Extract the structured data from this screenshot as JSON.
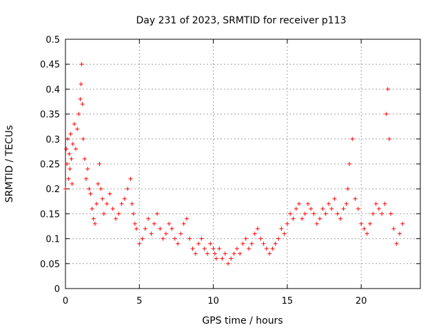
{
  "chart_data": {
    "type": "scatter",
    "title": "Day 231 of 2023, SRMTID for receiver p113",
    "xlabel": "GPS time / hours",
    "ylabel": "SRMTID / TECUs",
    "xlim": [
      0,
      24
    ],
    "ylim": [
      0,
      0.5
    ],
    "xticks": [
      0,
      5,
      10,
      15,
      20
    ],
    "xtick_labels": [
      "0",
      "5",
      "10",
      "15",
      "20"
    ],
    "yticks": [
      0,
      0.05,
      0.1,
      0.15,
      0.2,
      0.25,
      0.3,
      0.35,
      0.4,
      0.45,
      0.5
    ],
    "ytick_labels": [
      "0",
      "0.05",
      "0.1",
      "0.15",
      "0.2",
      "0.25",
      "0.3",
      "0.35",
      "0.4",
      "0.45",
      "0.5"
    ],
    "grid": true,
    "marker": "+",
    "color": "#ff0000",
    "series": [
      {
        "name": "SRMTID",
        "x": [
          0.0,
          0.05,
          0.1,
          0.15,
          0.2,
          0.25,
          0.3,
          0.35,
          0.4,
          0.45,
          0.5,
          0.6,
          0.7,
          0.8,
          0.9,
          1.0,
          1.05,
          1.1,
          1.15,
          1.2,
          1.3,
          1.4,
          1.5,
          1.6,
          1.7,
          1.8,
          1.9,
          2.0,
          2.1,
          2.2,
          2.3,
          2.4,
          2.5,
          2.6,
          2.8,
          3.0,
          3.2,
          3.4,
          3.6,
          3.8,
          4.0,
          4.2,
          4.4,
          4.5,
          4.6,
          4.7,
          4.8,
          5.0,
          5.2,
          5.4,
          5.6,
          5.8,
          6.0,
          6.2,
          6.4,
          6.6,
          6.8,
          7.0,
          7.2,
          7.4,
          7.6,
          7.8,
          8.0,
          8.2,
          8.4,
          8.6,
          8.8,
          9.0,
          9.2,
          9.4,
          9.6,
          9.8,
          10.0,
          10.1,
          10.2,
          10.4,
          10.6,
          10.8,
          11.0,
          11.2,
          11.4,
          11.6,
          11.8,
          12.0,
          12.2,
          12.4,
          12.6,
          12.8,
          13.0,
          13.2,
          13.4,
          13.6,
          13.8,
          14.0,
          14.2,
          14.4,
          14.6,
          14.8,
          15.0,
          15.2,
          15.4,
          15.6,
          15.8,
          16.0,
          16.2,
          16.4,
          16.6,
          16.8,
          17.0,
          17.2,
          17.4,
          17.6,
          17.8,
          18.0,
          18.2,
          18.4,
          18.6,
          18.8,
          19.0,
          19.1,
          19.2,
          19.4,
          19.6,
          19.8,
          20.0,
          20.2,
          20.4,
          20.6,
          20.8,
          21.0,
          21.2,
          21.4,
          21.6,
          21.7,
          21.8,
          21.9,
          22.0,
          22.2,
          22.4,
          22.6,
          22.8
        ],
        "y": [
          0.2,
          0.28,
          0.25,
          0.3,
          0.22,
          0.27,
          0.24,
          0.31,
          0.26,
          0.21,
          0.29,
          0.33,
          0.28,
          0.32,
          0.35,
          0.38,
          0.41,
          0.45,
          0.37,
          0.3,
          0.26,
          0.22,
          0.24,
          0.2,
          0.19,
          0.16,
          0.14,
          0.13,
          0.17,
          0.21,
          0.25,
          0.2,
          0.18,
          0.15,
          0.17,
          0.19,
          0.16,
          0.14,
          0.15,
          0.17,
          0.18,
          0.2,
          0.22,
          0.17,
          0.15,
          0.13,
          0.12,
          0.09,
          0.1,
          0.12,
          0.14,
          0.11,
          0.13,
          0.15,
          0.12,
          0.1,
          0.11,
          0.13,
          0.12,
          0.1,
          0.09,
          0.11,
          0.13,
          0.14,
          0.1,
          0.08,
          0.07,
          0.09,
          0.1,
          0.08,
          0.07,
          0.09,
          0.08,
          0.07,
          0.06,
          0.08,
          0.06,
          0.07,
          0.05,
          0.06,
          0.07,
          0.08,
          0.07,
          0.09,
          0.1,
          0.08,
          0.09,
          0.11,
          0.12,
          0.1,
          0.09,
          0.08,
          0.07,
          0.08,
          0.09,
          0.1,
          0.12,
          0.11,
          0.13,
          0.15,
          0.14,
          0.16,
          0.17,
          0.14,
          0.15,
          0.17,
          0.16,
          0.15,
          0.13,
          0.14,
          0.16,
          0.15,
          0.17,
          0.16,
          0.18,
          0.15,
          0.14,
          0.16,
          0.17,
          0.2,
          0.25,
          0.3,
          0.18,
          0.16,
          0.13,
          0.12,
          0.11,
          0.13,
          0.15,
          0.17,
          0.16,
          0.15,
          0.17,
          0.35,
          0.4,
          0.3,
          0.15,
          0.12,
          0.09,
          0.11,
          0.13
        ]
      }
    ]
  }
}
